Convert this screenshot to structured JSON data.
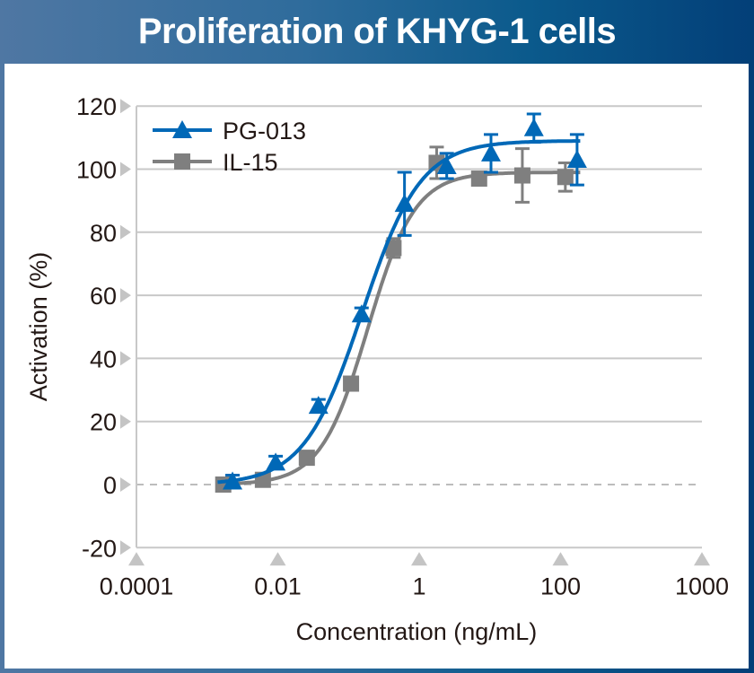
{
  "chart_data": {
    "type": "line",
    "title": "Proliferation of KHYG-1 cells",
    "xlabel": "Concentration (ng/mL)",
    "ylabel": "Activation (%)",
    "x_scale": "log",
    "x_ticks": [
      "0.0001",
      "0.01",
      "1",
      "100",
      "1000"
    ],
    "y_ticks": [
      -20,
      0,
      20,
      40,
      60,
      80,
      100,
      120
    ],
    "ylim": [
      -20,
      120
    ],
    "grid": true,
    "zero_line": "dashed",
    "legend": "top-left",
    "series": [
      {
        "name": "PG-013",
        "color": "#0068b7",
        "marker": "triangle",
        "x": [
          0.0023,
          0.0094,
          0.038,
          0.155,
          0.63,
          2.5,
          10.6,
          43,
          176
        ],
        "y": [
          1,
          7,
          25,
          54,
          89,
          101,
          105,
          113,
          103
        ],
        "error": [
          2,
          2,
          2,
          2,
          10,
          4,
          6,
          4.5,
          8
        ],
        "fit": {
          "bottom": 0,
          "top": 109,
          "log_ec50": -0.8,
          "hill": 1.05
        }
      },
      {
        "name": "IL-15",
        "color": "#7f7f7f",
        "marker": "square",
        "x": [
          0.0017,
          0.0062,
          0.026,
          0.11,
          0.44,
          1.8,
          7.2,
          29.5,
          120
        ],
        "y": [
          0,
          1.5,
          8.5,
          32,
          75,
          102,
          97,
          98,
          97.5
        ],
        "error": [
          0,
          0,
          0,
          0,
          3,
          5,
          2,
          8.5,
          4.5
        ],
        "fit": {
          "bottom": 0,
          "top": 99,
          "log_ec50": -0.72,
          "hill": 1.3
        }
      }
    ]
  }
}
